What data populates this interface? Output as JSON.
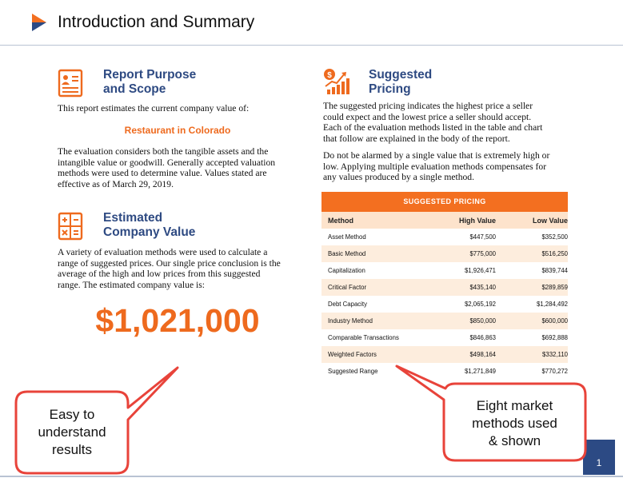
{
  "header": {
    "title": "Introduction and Summary"
  },
  "purpose": {
    "title_line1": "Report Purpose",
    "title_line2": "and Scope",
    "intro": "This report estimates the current company value of:",
    "company": "Restaurant in Colorado",
    "body_lines": [
      "The evaluation considers both the tangible assets and the",
      "intangible value or goodwill. Generally accepted valuation",
      "methods were used to determine value. Values stated are",
      "effective as of March 29, 2019."
    ],
    "icon": "report-document-icon"
  },
  "estimated": {
    "title_line1": "Estimated",
    "title_line2": "Company Value",
    "body_lines": [
      "A variety of evaluation methods were used to calculate a",
      "range of suggested prices. Our single price conclusion is the",
      "average of the high and low prices from this suggested",
      "range. The estimated company value is:"
    ],
    "value": "$1,021,000",
    "icon": "calculator-icon"
  },
  "pricing": {
    "title_line1": "Suggested",
    "title_line2": "Pricing",
    "para1_lines": [
      "The suggested pricing indicates the highest price a seller",
      "could expect and the lowest price a seller should accept.",
      "Each of the evaluation methods listed in the table and chart",
      "that follow are explained in the body of the report."
    ],
    "para2_lines": [
      "Do not be alarmed by a single value that is extremely high or",
      "low. Applying multiple evaluation methods compensates for",
      "any values produced by a single method."
    ],
    "icon": "dollar-growth-chart-icon"
  },
  "table": {
    "title": "SUGGESTED PRICING",
    "columns": [
      "Method",
      "High Value",
      "Low Value"
    ],
    "rows": [
      [
        "Asset Method",
        "$447,500",
        "$352,500"
      ],
      [
        "Basic Method",
        "$775,000",
        "$516,250"
      ],
      [
        "Capitalization",
        "$1,926,471",
        "$839,744"
      ],
      [
        "Critical Factor",
        "$435,140",
        "$289,859"
      ],
      [
        "Debt Capacity",
        "$2,065,192",
        "$1,284,492"
      ],
      [
        "Industry Method",
        "$850,000",
        "$600,000"
      ],
      [
        "Comparable Transactions",
        "$846,863",
        "$692,888"
      ],
      [
        "Weighted Factors",
        "$498,164",
        "$332,110"
      ],
      [
        "Suggested Range",
        "$1,271,849",
        "$770,272"
      ]
    ]
  },
  "callouts": {
    "left_lines": [
      "Easy to",
      "understand",
      "results"
    ],
    "right_lines": [
      "Eight market",
      "methods used",
      "& shown"
    ],
    "border_color": "#e8433a"
  },
  "footer": {
    "page_number": "1"
  },
  "colors": {
    "accent": "#ee6a1e",
    "title_blue": "#2e4a82",
    "page_box": "#2c4a84"
  }
}
